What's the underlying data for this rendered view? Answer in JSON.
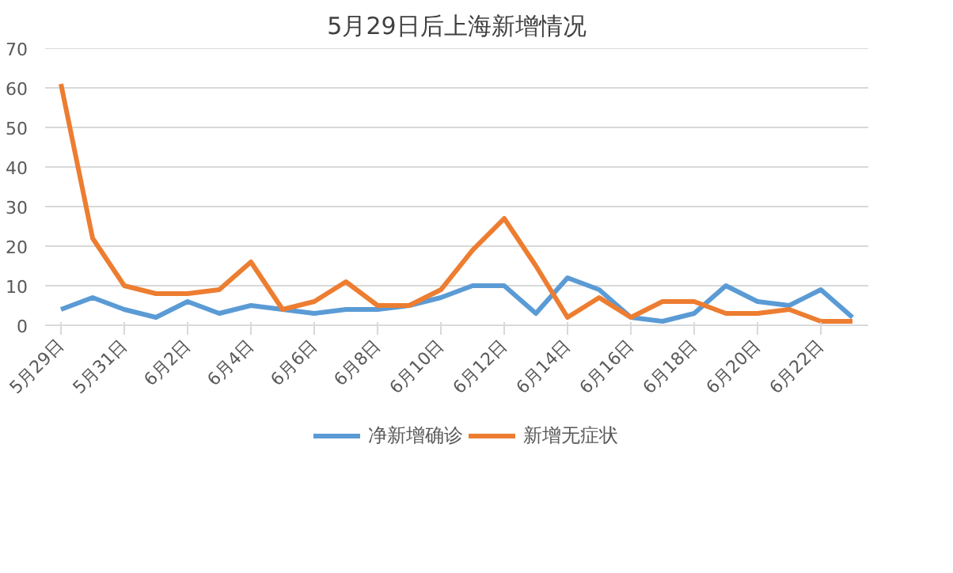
{
  "chart_data": {
    "type": "line",
    "title": "5月29日后上海新增情况",
    "categories": [
      "5月29日",
      null,
      "5月31日",
      null,
      "6月2日",
      null,
      "6月4日",
      null,
      "6月6日",
      null,
      "6月8日",
      null,
      "6月10日",
      null,
      "6月12日",
      null,
      "6月14日",
      null,
      "6月16日",
      null,
      "6月18日",
      null,
      "6月20日",
      null,
      "6月22日",
      null
    ],
    "series": [
      {
        "name": "净新增确诊",
        "color": "#5b9bd5",
        "values": [
          4,
          7,
          4,
          2,
          6,
          3,
          5,
          4,
          3,
          4,
          4,
          5,
          7,
          10,
          10,
          3,
          12,
          9,
          2,
          1,
          3,
          10,
          6,
          5,
          9,
          2
        ]
      },
      {
        "name": "新增无症状",
        "color": "#ed7d31",
        "values": [
          61,
          22,
          10,
          8,
          8,
          9,
          16,
          4,
          6,
          11,
          5,
          5,
          9,
          19,
          27,
          15,
          2,
          7,
          2,
          6,
          6,
          3,
          3,
          4,
          1,
          1
        ]
      }
    ],
    "ylim": [
      0,
      70
    ],
    "yticks": [
      0,
      10,
      20,
      30,
      40,
      50,
      60,
      70
    ],
    "grid": "y",
    "legend": "bottom",
    "marker": "none",
    "line_style": "solid"
  }
}
